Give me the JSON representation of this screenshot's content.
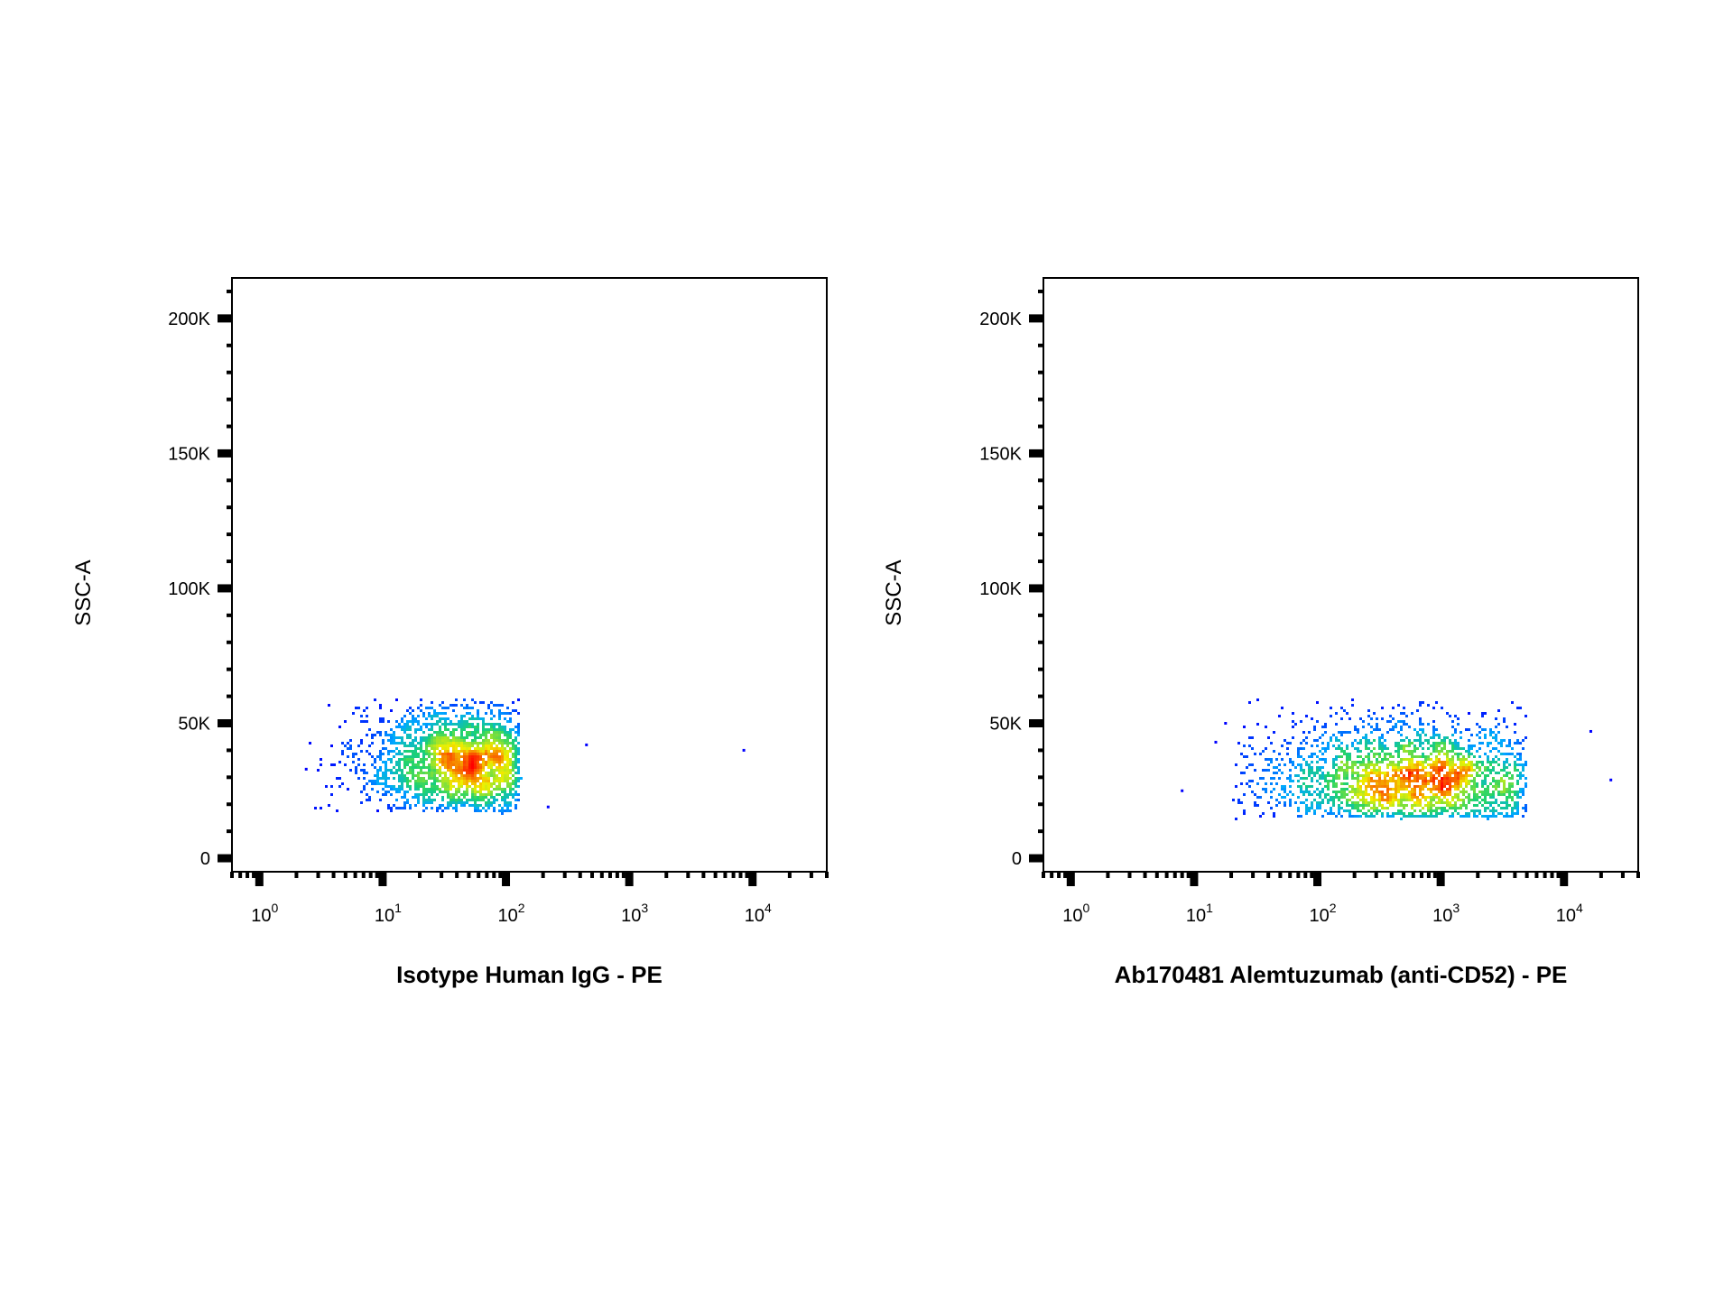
{
  "chart_data": [
    {
      "type": "scatter",
      "variant": "flow-cytometry density dot plot",
      "xlabel": "Isotype Human IgG - PE",
      "ylabel": "SSC-A",
      "x_scale": "log",
      "xlim": [
        0.6,
        40000
      ],
      "ylim": [
        -5000,
        215000
      ],
      "x_ticks": [
        {
          "value": 1,
          "base": "10",
          "exp": "0"
        },
        {
          "value": 10,
          "base": "10",
          "exp": "1"
        },
        {
          "value": 100,
          "base": "10",
          "exp": "2"
        },
        {
          "value": 1000,
          "base": "10",
          "exp": "3"
        },
        {
          "value": 10000,
          "base": "10",
          "exp": "4"
        }
      ],
      "y_ticks": [
        {
          "value": 0,
          "label": "0"
        },
        {
          "value": 50000,
          "label": "50K"
        },
        {
          "value": 100000,
          "label": "100K"
        },
        {
          "value": 150000,
          "label": "150K"
        },
        {
          "value": 200000,
          "label": "200K"
        }
      ],
      "grid": false,
      "population": {
        "peak_x": 50,
        "peak_y": 35000,
        "x_range": [
          2.5,
          130
        ],
        "y_range": [
          17000,
          59000
        ],
        "events_approx": 3000
      },
      "outliers": [
        {
          "x": 220,
          "y": 19000
        },
        {
          "x": 450,
          "y": 42000
        },
        {
          "x": 8500,
          "y": 40000
        },
        {
          "x": 2.4,
          "y": 33000
        }
      ]
    },
    {
      "type": "scatter",
      "variant": "flow-cytometry density dot plot",
      "xlabel": "Ab170481 Alemtuzumab (anti-CD52) - PE",
      "ylabel": "SSC-A",
      "x_scale": "log",
      "xlim": [
        0.6,
        40000
      ],
      "ylim": [
        -5000,
        215000
      ],
      "x_ticks": [
        {
          "value": 1,
          "base": "10",
          "exp": "0"
        },
        {
          "value": 10,
          "base": "10",
          "exp": "1"
        },
        {
          "value": 100,
          "base": "10",
          "exp": "2"
        },
        {
          "value": 1000,
          "base": "10",
          "exp": "3"
        },
        {
          "value": 10000,
          "base": "10",
          "exp": "4"
        }
      ],
      "y_ticks": [
        {
          "value": 0,
          "label": "0"
        },
        {
          "value": 50000,
          "label": "50K"
        },
        {
          "value": 100000,
          "label": "100K"
        },
        {
          "value": 150000,
          "label": "150K"
        },
        {
          "value": 200000,
          "label": "200K"
        }
      ],
      "grid": false,
      "population": {
        "peak_x": 600,
        "peak_y": 28000,
        "x_range": [
          20,
          5000
        ],
        "y_range": [
          15000,
          59000
        ],
        "events_approx": 3000
      },
      "outliers": [
        {
          "x": 8,
          "y": 25000
        },
        {
          "x": 15,
          "y": 43000
        },
        {
          "x": 18,
          "y": 50000
        },
        {
          "x": 16500,
          "y": 47000
        },
        {
          "x": 24000,
          "y": 29000
        }
      ]
    }
  ],
  "colors": {
    "density_low": "#0000ff",
    "density_mid_low": "#00b4ff",
    "density_mid": "#20d070",
    "density_mid_high": "#f0f000",
    "density_high": "#ff0000",
    "axis": "#000000"
  }
}
